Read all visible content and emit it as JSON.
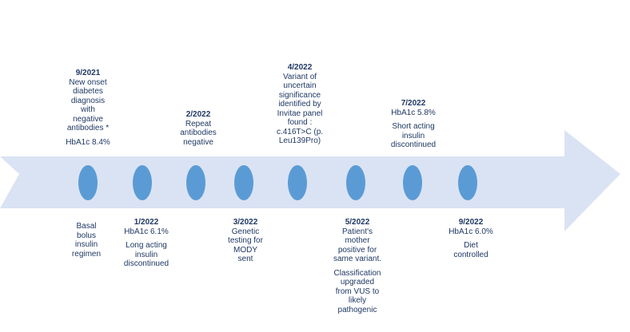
{
  "colors": {
    "arrow_body": "#dae3f3",
    "node": "#5b9bd5",
    "text": "#1f3864",
    "background": "#ffffff"
  },
  "events": [
    {
      "id": "9-2021",
      "position": "above",
      "date": "9/2021",
      "paragraphs": [
        [
          "New onset",
          "diabetes",
          "diagnosis",
          "with",
          "negative",
          "antibodies *"
        ],
        [
          "HbA1c 8.4%"
        ]
      ]
    },
    {
      "id": "basal",
      "position": "below",
      "date": "",
      "paragraphs": [
        [
          "Basal",
          "bolus",
          "insulin",
          "regimen"
        ]
      ]
    },
    {
      "id": "1-2022",
      "position": "below",
      "date": "1/2022",
      "paragraphs": [
        [
          "HbA1c 6.1%"
        ],
        [
          "Long acting",
          "insulin",
          "discontinued"
        ]
      ]
    },
    {
      "id": "2-2022",
      "position": "above",
      "date": "2/2022",
      "paragraphs": [
        [
          "Repeat",
          "antibodies",
          "negative"
        ]
      ]
    },
    {
      "id": "3-2022",
      "position": "below",
      "date": "3/2022",
      "paragraphs": [
        [
          "Genetic",
          "testing for",
          "MODY",
          "sent"
        ]
      ]
    },
    {
      "id": "4-2022",
      "position": "above",
      "date": "4/2022",
      "paragraphs": [
        [
          "Variant of",
          "uncertain",
          "significance",
          "identified by",
          "Invitae panel",
          "found :",
          "c.416T>C (p.",
          "Leu139Pro)"
        ]
      ]
    },
    {
      "id": "5-2022",
      "position": "below",
      "date": "5/2022",
      "paragraphs": [
        [
          "Patient's",
          "mother",
          "positive for",
          "same variant."
        ],
        [
          "Classification",
          "upgraded",
          "from VUS to",
          "likely",
          "pathogenic"
        ]
      ]
    },
    {
      "id": "7-2022",
      "position": "above",
      "date": "7/2022",
      "paragraphs": [
        [
          "HbA1c 5.8%"
        ],
        [
          "Short acting",
          "insulin",
          "discontinued"
        ]
      ]
    },
    {
      "id": "9-2022",
      "position": "below",
      "date": "9/2022",
      "paragraphs": [
        [
          "HbA1c 6.0%"
        ],
        [
          "Diet",
          "controlled"
        ]
      ]
    }
  ]
}
